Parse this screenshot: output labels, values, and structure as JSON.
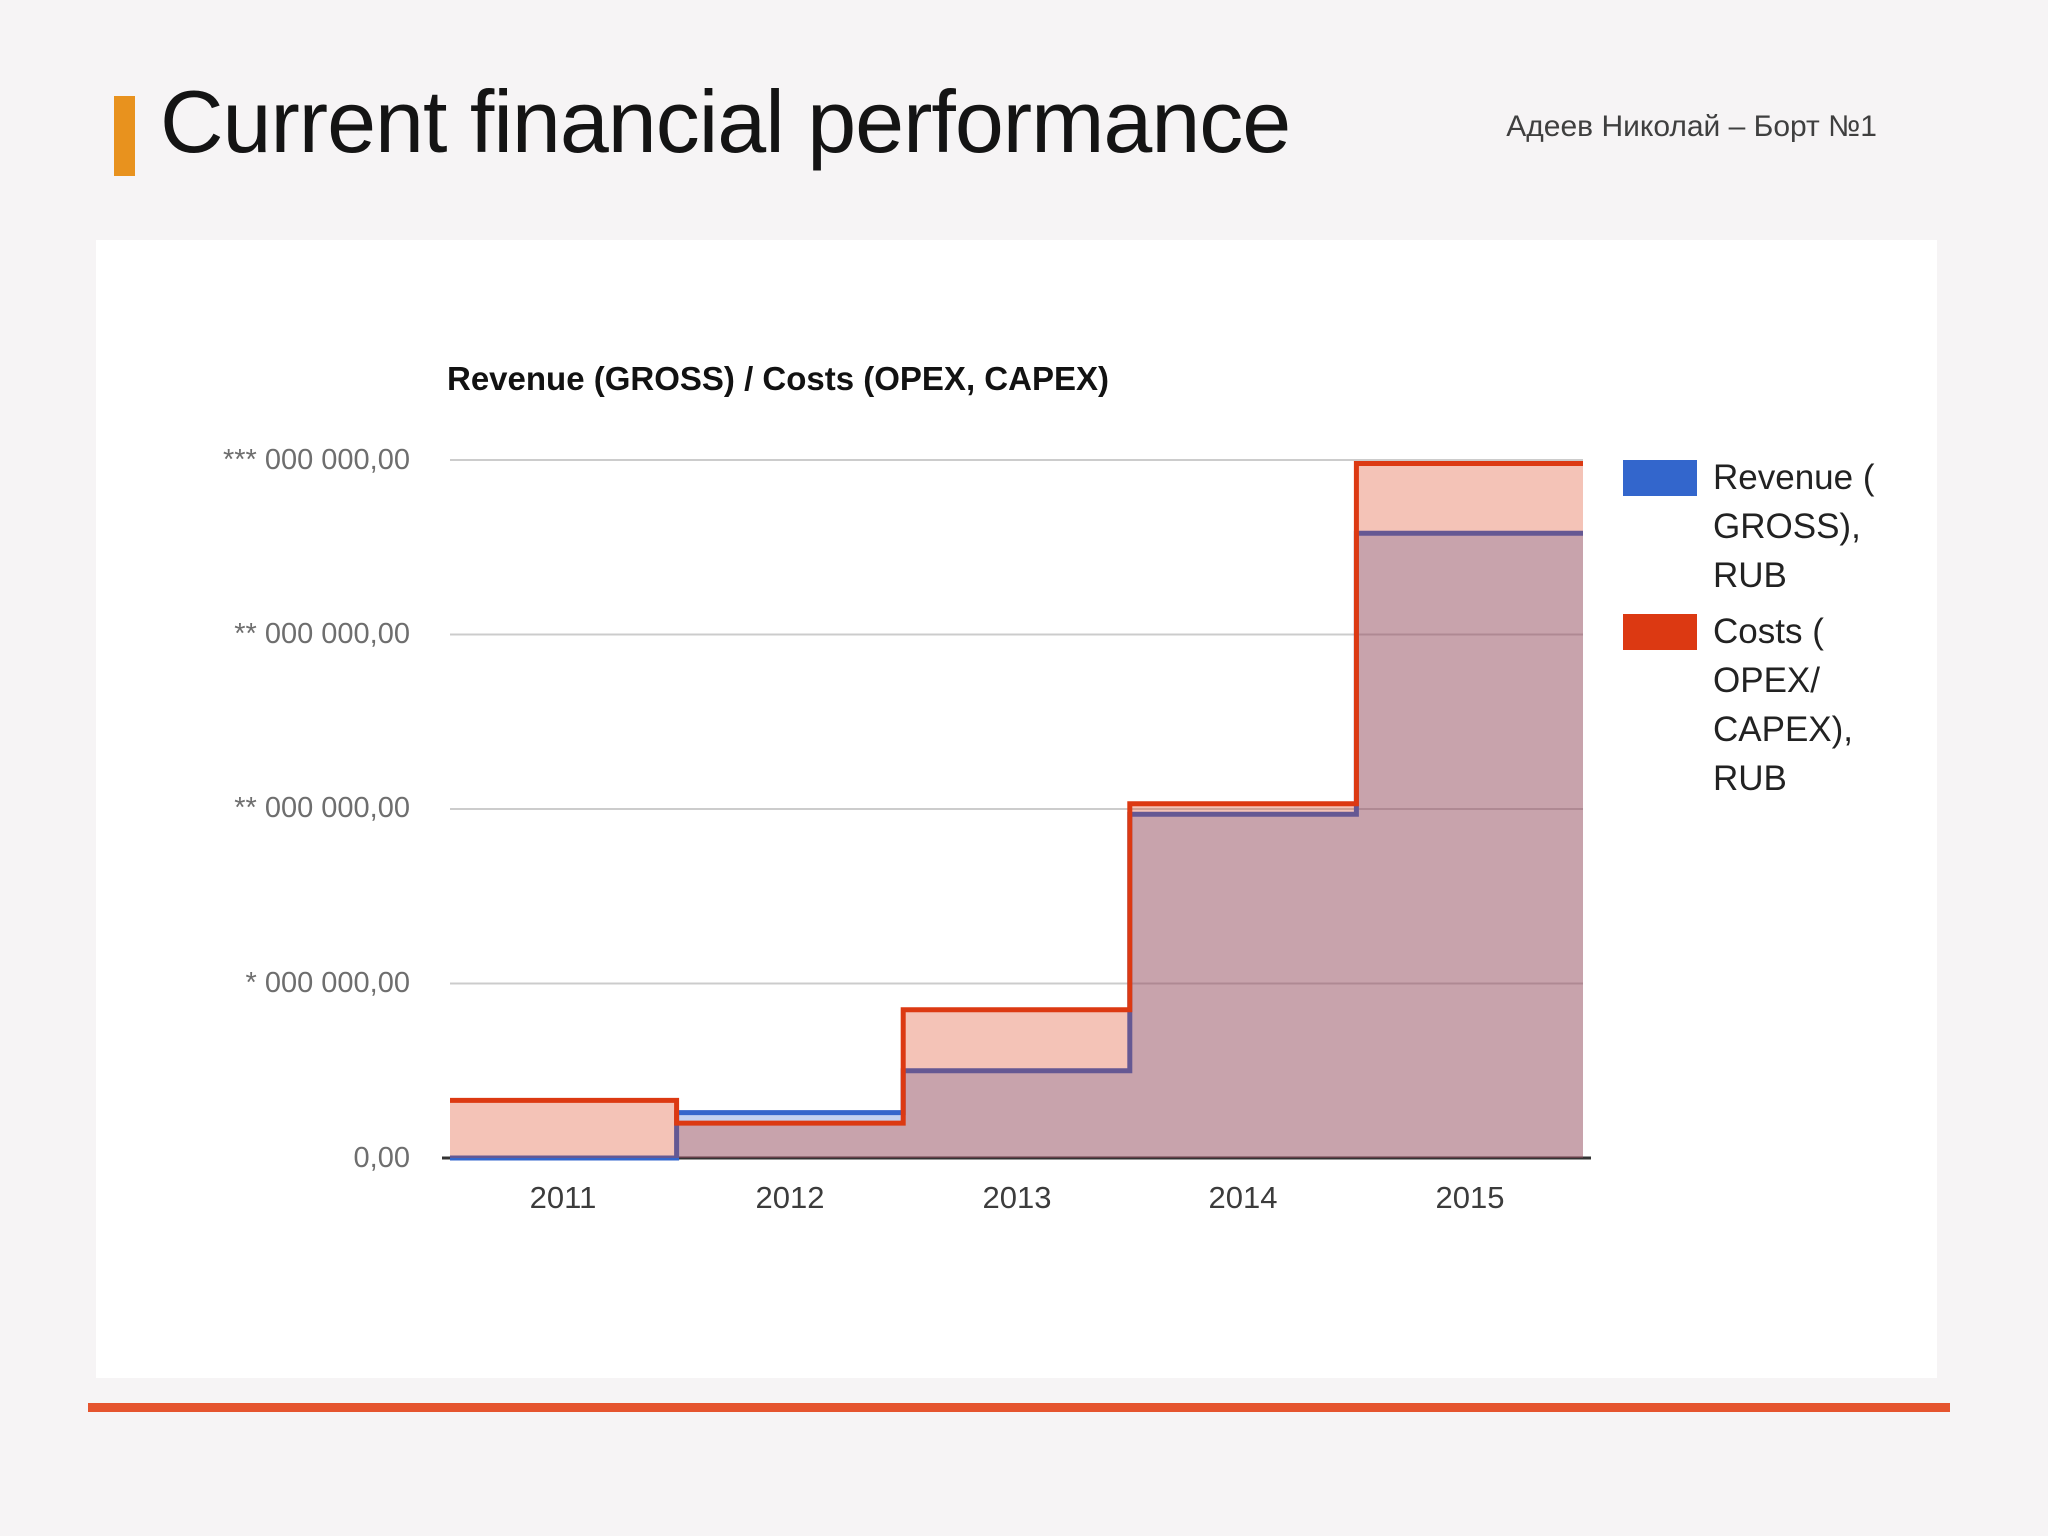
{
  "slide": {
    "title": "Current financial performance",
    "header_note": "Адеев Николай – Борт №1",
    "accent_color": "#e8921e",
    "footer_line_color": "#e5542e"
  },
  "chart_data": {
    "type": "area",
    "stepped": true,
    "title": "Revenue (GROSS) / Costs (OPEX, CAPEX)",
    "xlabel": "",
    "ylabel": "",
    "categories": [
      "2011",
      "2012",
      "2013",
      "2014",
      "2015"
    ],
    "series": [
      {
        "name": "Revenue (GROSS), RUB",
        "legend_label": "Revenue (\nGROSS),\nRUB",
        "color": "#3366cc",
        "values": [
          0,
          0.26,
          0.5,
          1.97,
          3.58
        ]
      },
      {
        "name": "Costs (OPEX/CAPEX), RUB",
        "legend_label": "Costs (\nOPEX/\nCAPEX),\nRUB",
        "color": "#dc3912",
        "values": [
          0.33,
          0.2,
          0.85,
          2.03,
          3.98
        ]
      }
    ],
    "value_units": "y-axis divisions; numeric labels masked with asterisks on screen",
    "y_ticks": [
      {
        "unit": 0,
        "label": "0,00"
      },
      {
        "unit": 1,
        "label": "* 000 000,00"
      },
      {
        "unit": 2,
        "label": "** 000 000,00"
      },
      {
        "unit": 3,
        "label": "** 000 000,00"
      },
      {
        "unit": 4,
        "label": "*** 000 000,00"
      }
    ],
    "ylim": [
      0,
      4
    ],
    "grid": true,
    "legend_position": "right",
    "area_opacity": 0.3,
    "baseline_color": "#333333",
    "gridline_color": "#cccccc"
  }
}
